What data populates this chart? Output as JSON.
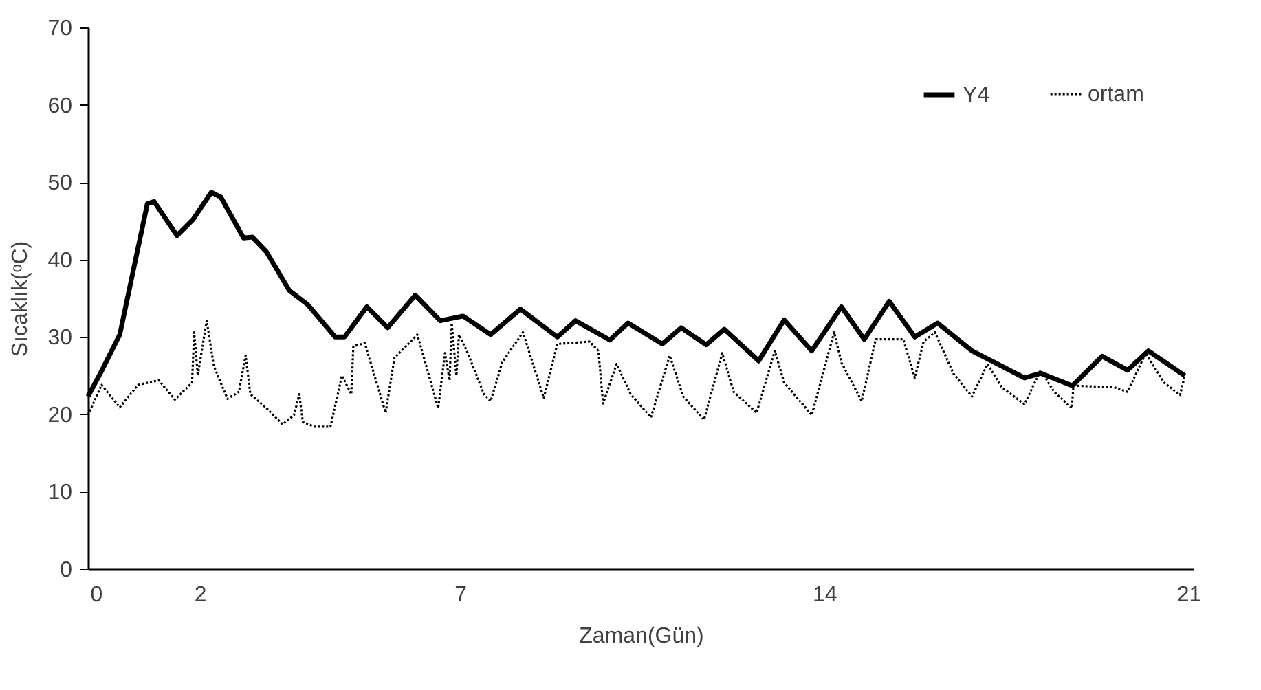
{
  "chart_data": {
    "type": "line",
    "xlabel": "Zaman(Gün)",
    "ylabel": "Sıcaklık(ᵒC)",
    "xlim": [
      -0.15,
      21.1
    ],
    "xticks": [
      0,
      2,
      7,
      14,
      21
    ],
    "ylim": [
      0,
      70
    ],
    "yticks": [
      0,
      10,
      20,
      30,
      40,
      50,
      60,
      70
    ],
    "grid": false,
    "legend": "top right",
    "marker": "none",
    "series": [
      {
        "name": "Y4",
        "color": "#000000",
        "line_style": "solid",
        "x": [
          -0.15,
          0.11,
          0.46,
          0.72,
          0.99,
          1.12,
          1.56,
          1.87,
          2.22,
          2.4,
          2.84,
          3.01,
          3.28,
          3.72,
          4.07,
          4.6,
          4.78,
          5.21,
          5.61,
          6.14,
          6.62,
          7.06,
          7.59,
          8.16,
          8.87,
          9.22,
          9.88,
          10.23,
          10.89,
          11.25,
          11.73,
          12.08,
          12.74,
          13.23,
          13.76,
          14.33,
          14.77,
          15.25,
          15.74,
          16.18,
          16.84,
          17.19,
          17.85,
          18.16,
          18.77,
          19.34,
          19.83,
          20.23,
          20.93
        ],
        "values": [
          22.3,
          25.6,
          30.3,
          38.6,
          47.2,
          47.5,
          43.1,
          45.2,
          48.7,
          48.1,
          42.8,
          42.9,
          41.0,
          36.0,
          34.2,
          30.0,
          30.0,
          33.9,
          31.2,
          35.4,
          32.1,
          32.7,
          30.3,
          33.6,
          30.0,
          32.1,
          29.6,
          31.8,
          29.1,
          31.2,
          29.0,
          31.0,
          26.9,
          32.2,
          28.2,
          33.9,
          29.7,
          34.6,
          30.0,
          31.8,
          28.2,
          27.0,
          24.7,
          25.3,
          23.7,
          27.5,
          25.7,
          28.2,
          25.0
        ]
      },
      {
        "name": "ortam",
        "color": "#000000",
        "line_style": "dotted",
        "x": [
          -0.15,
          0.11,
          0.46,
          0.81,
          1.21,
          1.52,
          1.85,
          1.89,
          1.96,
          2.13,
          2.27,
          2.53,
          2.75,
          2.88,
          2.97,
          3.28,
          3.59,
          3.81,
          3.91,
          3.98,
          4.2,
          4.51,
          4.73,
          4.91,
          4.95,
          5.17,
          5.57,
          5.74,
          6.18,
          6.58,
          6.71,
          6.8,
          6.84,
          6.93,
          6.98,
          7.15,
          7.46,
          7.59,
          7.81,
          8.21,
          8.61,
          8.87,
          9.49,
          9.66,
          9.75,
          10.01,
          10.28,
          10.67,
          11.03,
          11.29,
          11.69,
          12.04,
          12.26,
          12.7,
          13.05,
          13.23,
          13.76,
          14.19,
          14.33,
          14.37,
          14.72,
          14.99,
          15.52,
          15.74,
          15.91,
          16.13,
          16.48,
          16.84,
          17.14,
          17.41,
          17.85,
          18.16,
          18.42,
          18.76,
          18.79,
          19.57,
          19.83,
          20.18,
          20.53,
          20.84,
          20.93
        ],
        "values": [
          19.9,
          23.8,
          20.9,
          23.8,
          24.4,
          21.9,
          24.1,
          30.6,
          25.0,
          32.1,
          26.2,
          22.0,
          22.9,
          27.6,
          22.6,
          20.8,
          18.7,
          19.9,
          22.6,
          19.0,
          18.4,
          18.4,
          25.0,
          22.6,
          28.8,
          29.2,
          20.2,
          27.3,
          30.3,
          20.8,
          27.9,
          24.4,
          31.8,
          25.0,
          30.3,
          27.9,
          22.6,
          21.7,
          26.7,
          30.6,
          22.1,
          29.1,
          29.4,
          28.2,
          21.4,
          26.5,
          22.6,
          19.6,
          27.6,
          22.3,
          19.3,
          27.9,
          22.9,
          20.2,
          28.2,
          24.1,
          19.9,
          30.6,
          26.7,
          26.2,
          21.7,
          29.7,
          29.7,
          24.7,
          29.4,
          30.6,
          25.3,
          22.3,
          26.5,
          23.5,
          21.3,
          25.7,
          22.9,
          20.8,
          23.7,
          23.5,
          22.9,
          27.9,
          24.1,
          22.5,
          25.0
        ]
      }
    ]
  }
}
